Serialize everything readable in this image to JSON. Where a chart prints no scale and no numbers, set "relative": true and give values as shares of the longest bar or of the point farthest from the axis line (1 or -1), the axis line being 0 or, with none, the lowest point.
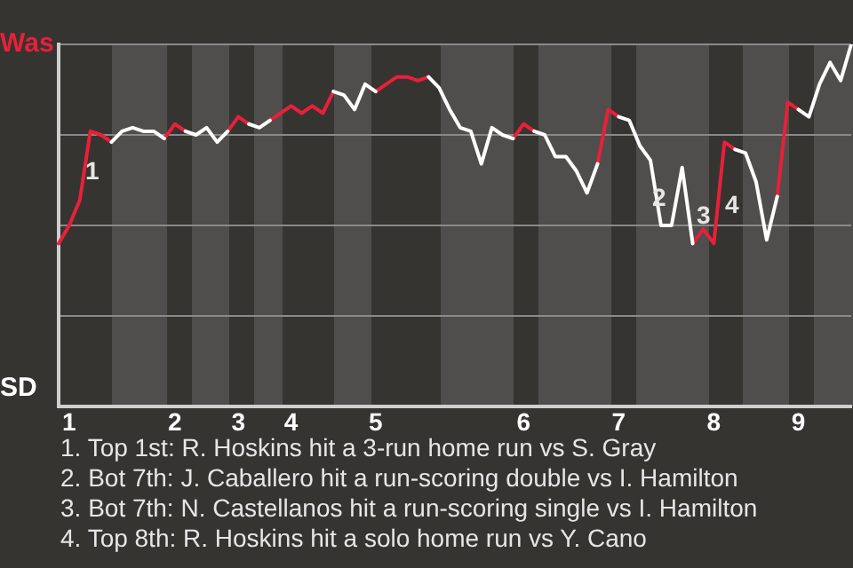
{
  "chart_data": {
    "type": "line",
    "relative": true,
    "categories": [
      null,
      "1",
      null,
      null,
      null,
      null,
      null,
      null,
      null,
      null,
      null,
      "2",
      null,
      null,
      null,
      null,
      null,
      "3",
      null,
      null,
      null,
      null,
      "4",
      null,
      null,
      null,
      null,
      null,
      null,
      null,
      "5",
      null,
      null,
      null,
      null,
      null,
      null,
      null,
      null,
      null,
      null,
      null,
      null,
      null,
      "6",
      null,
      null,
      null,
      null,
      null,
      null,
      null,
      null,
      "7",
      null,
      null,
      null,
      null,
      null,
      null,
      null,
      null,
      "8",
      null,
      null,
      null,
      null,
      null,
      null,
      null,
      "9",
      null,
      null,
      null,
      null,
      null
    ],
    "series": [
      {
        "color": "#ffffff",
        "values": [
          null,
          null,
          null,
          null,
          null,
          0.73,
          0.76,
          0.77,
          0.76,
          0.76,
          0.74,
          null,
          0.76,
          0.75,
          0.77,
          0.73,
          0.76,
          null,
          0.78,
          0.77,
          0.79,
          null,
          null,
          null,
          null,
          null,
          0.87,
          0.86,
          0.82,
          0.89,
          0.87,
          null,
          null,
          null,
          null,
          0.91,
          0.88,
          0.82,
          0.77,
          0.76,
          0.67,
          0.77,
          0.75,
          0.74,
          null,
          0.76,
          0.75,
          0.69,
          0.69,
          0.65,
          0.59,
          0.67,
          null,
          0.8,
          0.79,
          0.72,
          0.68,
          0.5,
          0.5,
          0.66,
          0.45,
          null,
          null,
          null,
          0.71,
          0.7,
          0.62,
          0.46,
          0.58,
          null,
          0.82,
          0.8,
          0.89,
          0.95,
          0.9,
          1
        ]
      },
      {
        "color": "#e8203a",
        "values": [
          0.45,
          0.5,
          0.57,
          0.76,
          0.75,
          0.73,
          null,
          null,
          null,
          null,
          0.74,
          0.78,
          0.76,
          null,
          null,
          null,
          0.76,
          0.8,
          0.78,
          null,
          0.79,
          0.81,
          0.83,
          0.81,
          0.83,
          0.81,
          0.87,
          null,
          null,
          null,
          0.87,
          0.89,
          0.91,
          0.91,
          0.9,
          0.91,
          null,
          null,
          null,
          null,
          null,
          null,
          null,
          0.74,
          0.78,
          0.76,
          null,
          null,
          null,
          null,
          null,
          0.67,
          0.82,
          0.8,
          null,
          null,
          null,
          null,
          null,
          null,
          0.45,
          0.49,
          0.45,
          0.73,
          0.71,
          null,
          null,
          null,
          0.58,
          0.84,
          0.82,
          null,
          null,
          null,
          null,
          null
        ]
      }
    ],
    "grid": "y",
    "legend": false,
    "annotations": [
      "Was",
      "SD",
      "1",
      "2",
      "3",
      "4",
      "1. Top 1st: R. Hoskins hit a 3-run home run vs S. Gray",
      "2. Bot 7th: J. Caballero hit a run-scoring double vs I. Hamilton",
      "3. Bot 7th: N. Castellanos hit a run-scoring single vs I. Hamilton",
      "4. Top 8th: R. Hoskins hit a solo home run vs Y. Cano"
    ]
  }
}
